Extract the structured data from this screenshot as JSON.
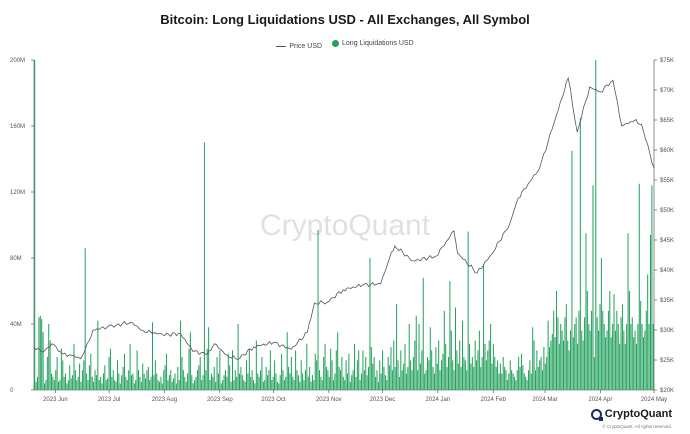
{
  "chart_data": {
    "type": "bar",
    "title": "Bitcoin: Long Liquidations USD - All Exchanges, All Symbol",
    "legend_position": "top-center",
    "grid": false,
    "x_range": [
      "2023-05-20",
      "2024-05-01"
    ],
    "x_ticks": [
      "2023 Jun",
      "2023 Jul",
      "2023 Aug",
      "2023 Sep",
      "2023 Oct",
      "2023 Nov",
      "2023 Dec",
      "2024 Jan",
      "2024 Feb",
      "2024 Mar",
      "2024 Apr",
      "2024 May"
    ],
    "x_tick_dates": [
      "2023-06-01",
      "2023-07-01",
      "2023-08-01",
      "2023-09-01",
      "2023-10-01",
      "2023-11-01",
      "2023-12-01",
      "2024-01-01",
      "2024-02-01",
      "2024-03-01",
      "2024-04-01",
      "2024-05-01"
    ],
    "y_left": {
      "ticks": [
        "0",
        "40M",
        "80M",
        "120M",
        "160M",
        "200M"
      ],
      "ylim": [
        0,
        200000000
      ]
    },
    "y_right": {
      "ticks": [
        "$20K",
        "$25K",
        "$30K",
        "$35K",
        "$40K",
        "$45K",
        "$50K",
        "$55K",
        "$60K",
        "$65K",
        "$70K",
        "$75K"
      ],
      "ylim": [
        20000,
        75000
      ]
    },
    "series": [
      {
        "name": "Price USD",
        "type": "line",
        "color": "#555555",
        "axis": "right",
        "points": [
          [
            "2023-05-20",
            27100
          ],
          [
            "2023-05-25",
            26300
          ],
          [
            "2023-05-30",
            27700
          ],
          [
            "2023-06-05",
            26000
          ],
          [
            "2023-06-10",
            25800
          ],
          [
            "2023-06-15",
            25200
          ],
          [
            "2023-06-20",
            28300
          ],
          [
            "2023-06-22",
            30000
          ],
          [
            "2023-06-30",
            30500
          ],
          [
            "2023-07-05",
            30800
          ],
          [
            "2023-07-13",
            31300
          ],
          [
            "2023-07-20",
            29900
          ],
          [
            "2023-07-31",
            29200
          ],
          [
            "2023-08-10",
            29400
          ],
          [
            "2023-08-17",
            26400
          ],
          [
            "2023-08-25",
            26000
          ],
          [
            "2023-08-29",
            27700
          ],
          [
            "2023-09-05",
            25800
          ],
          [
            "2023-09-11",
            25100
          ],
          [
            "2023-09-20",
            27200
          ],
          [
            "2023-10-01",
            27900
          ],
          [
            "2023-10-11",
            26800
          ],
          [
            "2023-10-20",
            29600
          ],
          [
            "2023-10-24",
            34500
          ],
          [
            "2023-10-31",
            34600
          ],
          [
            "2023-11-09",
            36700
          ],
          [
            "2023-11-20",
            37500
          ],
          [
            "2023-11-30",
            37700
          ],
          [
            "2023-12-05",
            42000
          ],
          [
            "2023-12-08",
            44000
          ],
          [
            "2023-12-18",
            41500
          ],
          [
            "2023-12-31",
            42300
          ],
          [
            "2024-01-10",
            46500
          ],
          [
            "2024-01-12",
            42800
          ],
          [
            "2024-01-23",
            39500
          ],
          [
            "2024-01-31",
            42600
          ],
          [
            "2024-02-10",
            47500
          ],
          [
            "2024-02-15",
            52000
          ],
          [
            "2024-02-27",
            57000
          ],
          [
            "2024-03-05",
            63500
          ],
          [
            "2024-03-14",
            72000
          ],
          [
            "2024-03-19",
            63000
          ],
          [
            "2024-03-26",
            70500
          ],
          [
            "2024-04-01",
            69700
          ],
          [
            "2024-04-08",
            71600
          ],
          [
            "2024-04-13",
            64000
          ],
          [
            "2024-04-20",
            64900
          ],
          [
            "2024-04-24",
            64300
          ],
          [
            "2024-05-01",
            57000
          ]
        ]
      },
      {
        "name": "Long Liquidations USD",
        "type": "bar",
        "color": "#23a15c",
        "axis": "left",
        "values": [
          200,
          5,
          8,
          44,
          45,
          43,
          35,
          4,
          6,
          20,
          40,
          30,
          10,
          8,
          6,
          12,
          20,
          5,
          6,
          25,
          18,
          8,
          10,
          4,
          6,
          15,
          7,
          9,
          28,
          12,
          6,
          8,
          16,
          5,
          12,
          18,
          86,
          10,
          6,
          15,
          22,
          8,
          5,
          12,
          9,
          42,
          6,
          8,
          4,
          10,
          15,
          6,
          7,
          20,
          25,
          8,
          12,
          6,
          5,
          18,
          10,
          4,
          9,
          14,
          22,
          8,
          6,
          12,
          28,
          9,
          10,
          4,
          6,
          24,
          12,
          8,
          5,
          16,
          10,
          7,
          12,
          14,
          6,
          8,
          41,
          9,
          18,
          10,
          6,
          5,
          8,
          4,
          12,
          15,
          22,
          6,
          9,
          12,
          5,
          7,
          10,
          4,
          14,
          6,
          42,
          20,
          12,
          8,
          5,
          10,
          25,
          35,
          9,
          4,
          6,
          8,
          12,
          15,
          20,
          6,
          9,
          150,
          12,
          25,
          38,
          6,
          10,
          8,
          14,
          5,
          20,
          10,
          24,
          4,
          6,
          9,
          12,
          8,
          22,
          15,
          5,
          24,
          6,
          12,
          8,
          40,
          10,
          14,
          9,
          6,
          5,
          18,
          10,
          25,
          8,
          12,
          6,
          4,
          30,
          10,
          8,
          12,
          20,
          5,
          6,
          14,
          9,
          12,
          24,
          6,
          8,
          18,
          10,
          5,
          4,
          9,
          22,
          12,
          6,
          8,
          35,
          14,
          10,
          20,
          8,
          6,
          24,
          12,
          9,
          5,
          18,
          10,
          6,
          12,
          28,
          8,
          14,
          5,
          9,
          6,
          22,
          18,
          97,
          12,
          8,
          6,
          20,
          28,
          14,
          12,
          8,
          25,
          18,
          6,
          10,
          24,
          35,
          14,
          12,
          20,
          8,
          6,
          18,
          10,
          22,
          5,
          9,
          12,
          28,
          8,
          18,
          24,
          6,
          10,
          24,
          12,
          20,
          9,
          14,
          80,
          26,
          16,
          20,
          8,
          12,
          5,
          18,
          10,
          24,
          14,
          9,
          6,
          20,
          15,
          26,
          12,
          30,
          14,
          52,
          18,
          8,
          24,
          12,
          16,
          28,
          10,
          14,
          40,
          18,
          12,
          20,
          30,
          45,
          12,
          40,
          16,
          24,
          68,
          10,
          12,
          20,
          18,
          38,
          24,
          14,
          10,
          26,
          16,
          30,
          12,
          18,
          22,
          48,
          28,
          14,
          20,
          66,
          36,
          18,
          12,
          50,
          24,
          16,
          30,
          14,
          42,
          20,
          18,
          12,
          96,
          28,
          16,
          20,
          14,
          30,
          18,
          24,
          36,
          14,
          20,
          76,
          28,
          18,
          24,
          30,
          40,
          16,
          28,
          20,
          14,
          18,
          10,
          16,
          10,
          20,
          14,
          12,
          6,
          10,
          18,
          12,
          10,
          8,
          6,
          12,
          20,
          14,
          22,
          15,
          10,
          8,
          6,
          12,
          18,
          10,
          38,
          30,
          12,
          24,
          14,
          18,
          20,
          12,
          26,
          16,
          20,
          42,
          26,
          30,
          34,
          48,
          32,
          60,
          44,
          28,
          40,
          36,
          30,
          44,
          52,
          30,
          24,
          36,
          145,
          32,
          40,
          44,
          28,
          48,
          165,
          36,
          30,
          44,
          95,
          60,
          40,
          36,
          48,
          124,
          20,
          200,
          44,
          36,
          52,
          80,
          48,
          40,
          32,
          36,
          48,
          60,
          32,
          40,
          58,
          36,
          48,
          40,
          28,
          44,
          52,
          36,
          28,
          40,
          95,
          60,
          40,
          44,
          32,
          36,
          28,
          40,
          125,
          54,
          40,
          32,
          36,
          48,
          70,
          40,
          94,
          124,
          40
        ]
      }
    ]
  },
  "watermark": "CryptoQuant",
  "brand": "CryptoQuant",
  "copyright": "© CryptoQuant. All rights reserved."
}
